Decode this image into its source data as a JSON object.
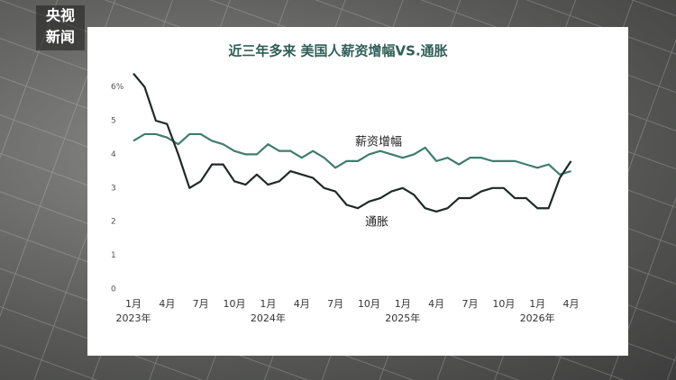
{
  "logo": [
    "央视",
    "新闻"
  ],
  "chart_data": {
    "type": "line",
    "title": "近三年多来 美国人薪资增幅VS.通胀",
    "categories": [
      "1月",
      null,
      null,
      "4月",
      null,
      null,
      "7月",
      null,
      null,
      "10月",
      null,
      null,
      "1月",
      null,
      null,
      "4月",
      null,
      null,
      "7月",
      null,
      null,
      "10月",
      null,
      null,
      "1月",
      null,
      null,
      "4月",
      null,
      null,
      "7月",
      null,
      null,
      "10月",
      null,
      null,
      "1月",
      null,
      null,
      "4月"
    ],
    "category_years": [
      "2023年",
      null,
      null,
      null,
      null,
      null,
      null,
      null,
      null,
      null,
      null,
      null,
      "2024年",
      null,
      null,
      null,
      null,
      null,
      null,
      null,
      null,
      null,
      null,
      null,
      "2025年",
      null,
      null,
      null,
      null,
      null,
      null,
      null,
      null,
      null,
      null,
      null,
      "2026年",
      null,
      null,
      null
    ],
    "series": [
      {
        "name": "薪资增幅",
        "color": "#3f7d6e",
        "values": [
          4.4,
          4.6,
          4.6,
          4.5,
          4.3,
          4.6,
          4.6,
          4.4,
          4.3,
          4.1,
          4.0,
          4.0,
          4.3,
          4.1,
          4.1,
          3.9,
          4.1,
          3.9,
          3.6,
          3.8,
          3.8,
          4.0,
          4.1,
          4.0,
          3.9,
          4.0,
          4.2,
          3.8,
          3.9,
          3.7,
          3.9,
          3.9,
          3.8,
          3.8,
          3.8,
          3.7,
          3.6,
          3.7,
          3.4,
          3.5
        ]
      },
      {
        "name": "通胀",
        "color": "#1f2a28",
        "values": [
          6.4,
          6.0,
          5.0,
          4.9,
          4.0,
          3.0,
          3.2,
          3.7,
          3.7,
          3.2,
          3.1,
          3.4,
          3.1,
          3.2,
          3.5,
          3.4,
          3.3,
          3.0,
          2.9,
          2.5,
          2.4,
          2.6,
          2.7,
          2.9,
          3.0,
          2.8,
          2.4,
          2.3,
          2.4,
          2.7,
          2.7,
          2.9,
          3.0,
          3.0,
          2.7,
          2.7,
          2.4,
          2.4,
          3.3,
          3.8
        ]
      }
    ],
    "ylim": [
      0,
      6.5
    ],
    "yticks": [
      0,
      1,
      2,
      3,
      4,
      5,
      {
        "value": 6,
        "label": "6%"
      }
    ],
    "grid": false
  }
}
